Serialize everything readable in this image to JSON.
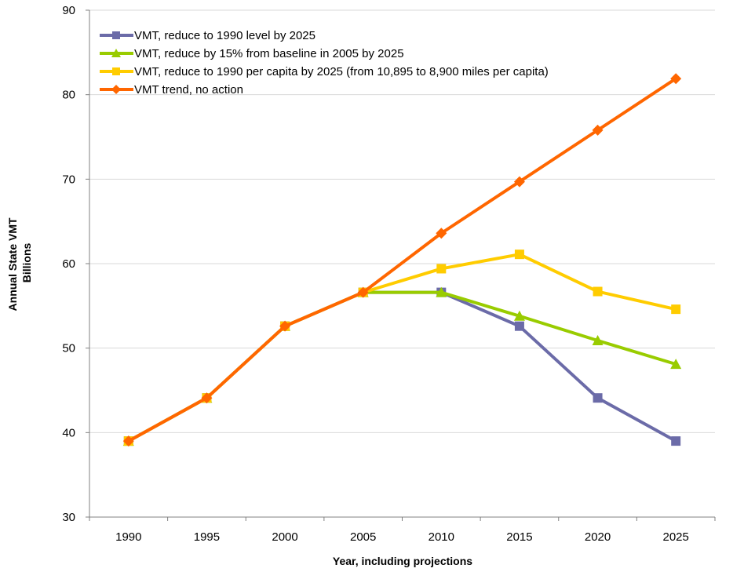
{
  "chart_data": {
    "type": "line",
    "title": "",
    "xlabel": "Year, including projections",
    "ylabel_lines": [
      "Annual State VMT",
      "Billions"
    ],
    "x": [
      "1990",
      "1995",
      "2000",
      "2005",
      "2010",
      "2015",
      "2020",
      "2025"
    ],
    "ylim": [
      30,
      90
    ],
    "yticks": [
      30,
      40,
      50,
      60,
      70,
      80,
      90
    ],
    "grid": "horizontal",
    "legend_position": "top-left",
    "series": [
      {
        "name": "VMT, reduce to 1990 level by 2025",
        "color": "#6B6BA8",
        "marker": "square",
        "values": [
          39.0,
          44.1,
          52.6,
          56.6,
          56.6,
          52.6,
          44.1,
          39.0
        ]
      },
      {
        "name": "VMT, reduce by 15% from baseline in 2005 by 2025",
        "color": "#99CC00",
        "marker": "triangle",
        "values": [
          39.0,
          44.1,
          52.6,
          56.6,
          56.6,
          53.8,
          50.9,
          48.1
        ]
      },
      {
        "name": "VMT, reduce to 1990 per capita by 2025 (from 10,895 to 8,900 miles per capita)",
        "color": "#FFCC00",
        "marker": "square",
        "values": [
          39.0,
          44.1,
          52.6,
          56.6,
          59.4,
          61.1,
          56.7,
          54.6
        ]
      },
      {
        "name": "VMT trend, no action",
        "color": "#FF6600",
        "marker": "diamond",
        "values": [
          39.0,
          44.1,
          52.6,
          56.6,
          63.6,
          69.7,
          75.8,
          81.9
        ]
      }
    ]
  }
}
